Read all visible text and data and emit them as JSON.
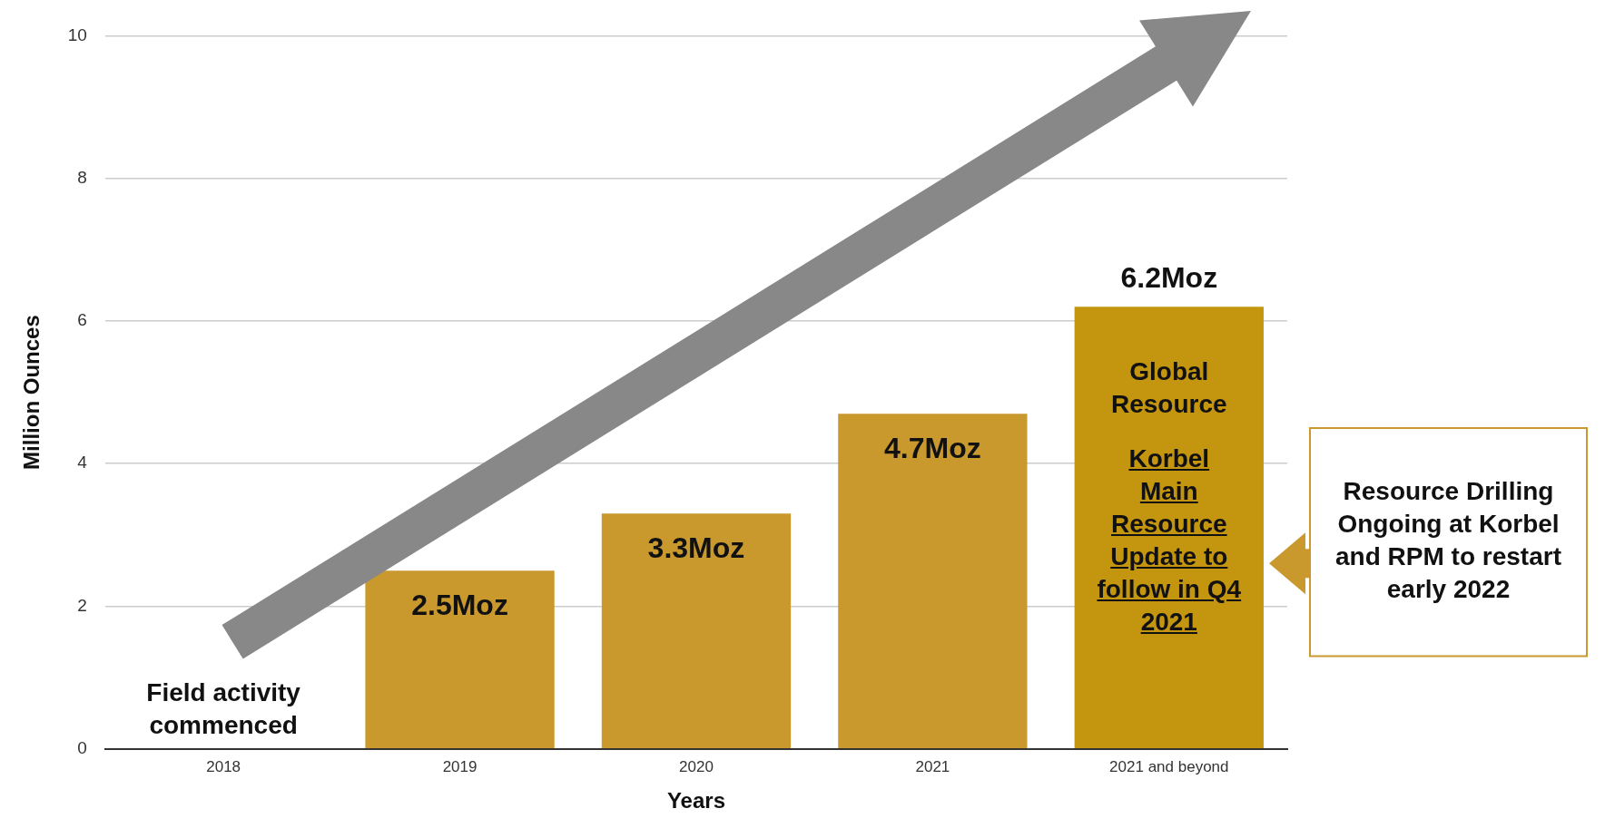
{
  "chart_data": {
    "type": "bar",
    "xlabel": "Years",
    "ylabel": "Million Ounces",
    "categories": [
      "2018",
      "2019",
      "2020",
      "2021",
      "2021 and beyond"
    ],
    "values": [
      null,
      2.5,
      3.3,
      4.7,
      6.2
    ],
    "colors": [
      "#c9992e",
      "#c9992e",
      "#c9992e",
      "#c9992e",
      "#c4950f"
    ],
    "value_labels": [
      null,
      "2.5Moz",
      "3.3Moz",
      "4.7Moz",
      "6.2Moz"
    ],
    "ylim": [
      0,
      10
    ],
    "yticks": [
      0,
      2,
      4,
      6,
      8,
      10
    ],
    "grid": "y",
    "legend": false,
    "annotations": [
      "Field activity commenced",
      "Global Resource",
      "Korbel Main Resource Update to follow in Q4 2021",
      "Resource Drilling Ongoing at Korbel and RPM to restart early 2022"
    ]
  }
}
